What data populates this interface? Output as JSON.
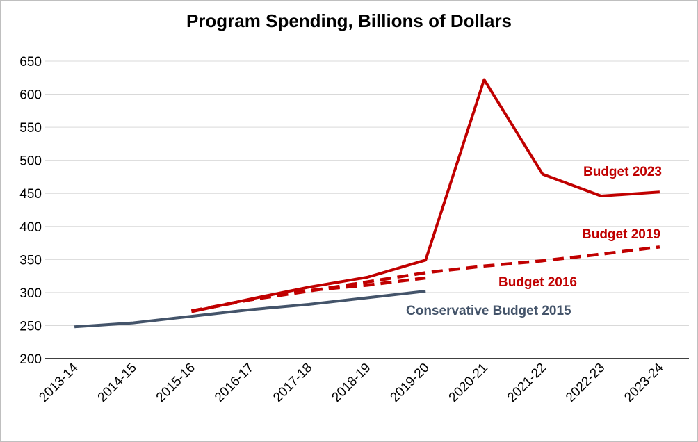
{
  "chart_data": {
    "type": "line",
    "title": "Program Spending, Billions of Dollars",
    "xlabel": "",
    "ylabel": "",
    "categories": [
      "2013-14",
      "2014-15",
      "2015-16",
      "2016-17",
      "2017-18",
      "2018-19",
      "2019-20",
      "2020-21",
      "2021-22",
      "2022-23",
      "2023-24"
    ],
    "ylim": [
      200,
      650
    ],
    "yticks": [
      200,
      250,
      300,
      350,
      400,
      450,
      500,
      550,
      600,
      650
    ],
    "grid": true,
    "series": [
      {
        "name": "Conservative Budget 2015",
        "color": "#44546a",
        "style": "solid",
        "values": [
          248,
          254,
          264,
          274,
          282,
          292,
          302,
          null,
          null,
          null,
          null
        ]
      },
      {
        "name": "Budget 2016",
        "color": "#c00000",
        "style": "dashed",
        "values": [
          null,
          null,
          272,
          289,
          303,
          311,
          322,
          null,
          null,
          null,
          null
        ]
      },
      {
        "name": "Budget 2019",
        "color": "#c00000",
        "style": "dashed",
        "values": [
          null,
          null,
          272,
          289,
          302,
          316,
          330,
          340,
          348,
          358,
          369
        ]
      },
      {
        "name": "Budget 2023",
        "color": "#c00000",
        "style": "solid",
        "values": [
          null,
          null,
          271,
          290,
          308,
          323,
          349,
          622,
          479,
          446,
          452
        ]
      }
    ]
  }
}
